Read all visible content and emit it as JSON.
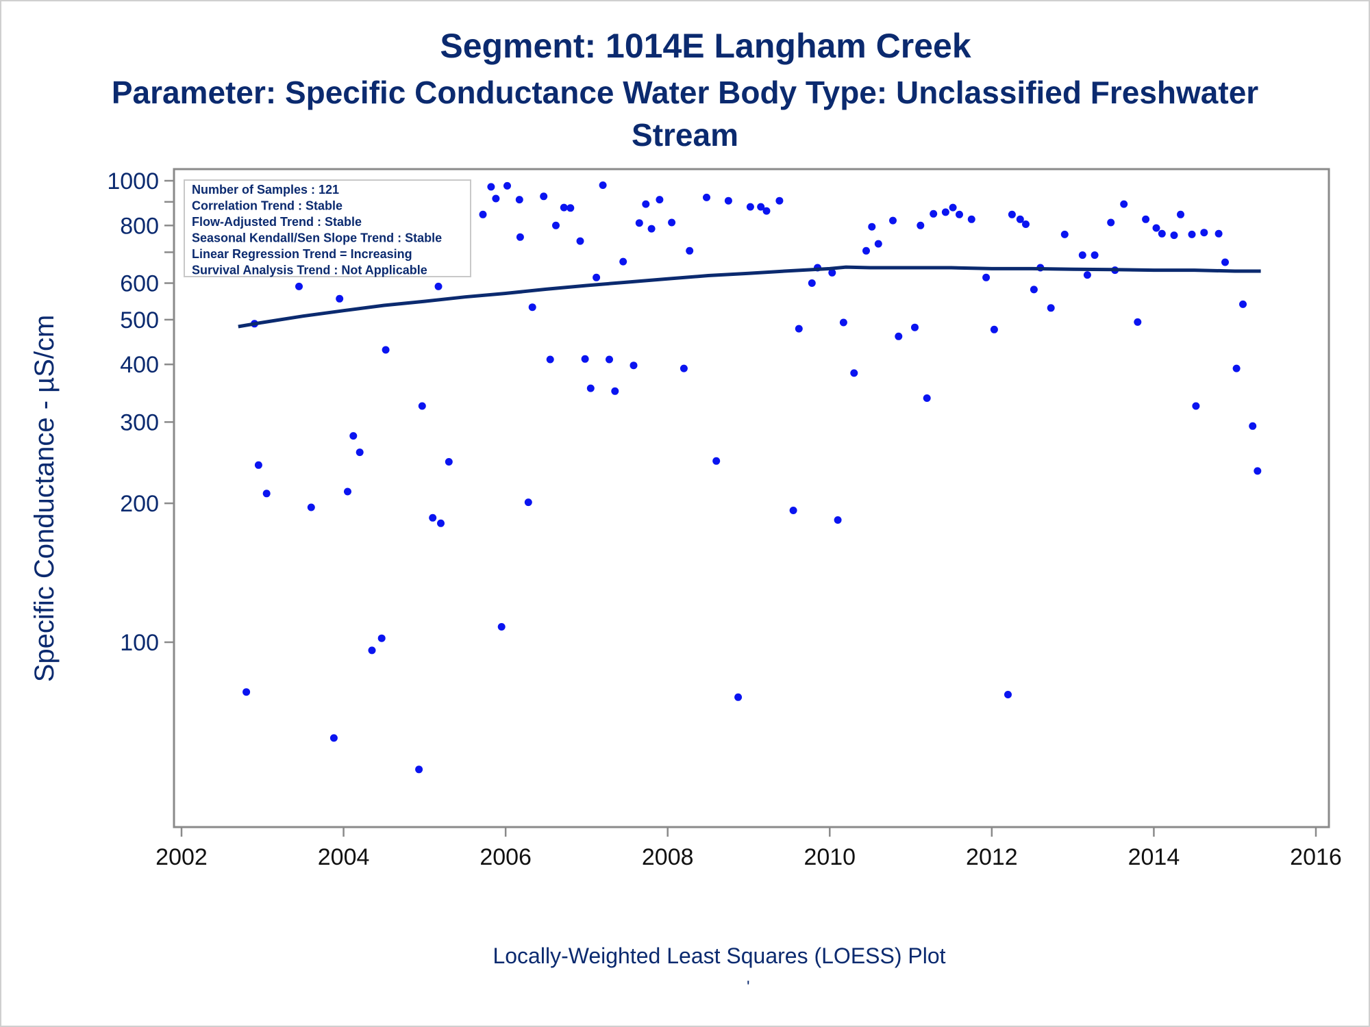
{
  "title": "Segment: 1014E  Langham Creek",
  "subtitle": "Parameter: Specific Conductance   Water Body Type: Unclassified Freshwater Stream",
  "footnote": "Locally-Weighted Least Squares (LOESS) Plot",
  "footnote2": "'",
  "colors": {
    "text": "#0b2a6f",
    "points": "#0a14f0",
    "loess": "#0b2a6f",
    "axis": "#8a8a8a"
  },
  "stats_box": {
    "lines": [
      "Number of Samples : 121",
      "Correlation Trend : Stable",
      "Flow-Adjusted Trend : Stable",
      "Seasonal Kendall/Sen Slope Trend : Stable",
      "Linear Regression Trend = Increasing",
      "Survival Analysis Trend : Not Applicable"
    ]
  },
  "chart_data": {
    "type": "scatter",
    "xlabel": "",
    "ylabel": "Specific Conductance -  µS/cm",
    "yscale": "log",
    "xlim": [
      2002,
      2016
    ],
    "ylim": [
      53,
      1000
    ],
    "x_ticks": [
      2002,
      2004,
      2006,
      2008,
      2010,
      2012,
      2014,
      2016
    ],
    "y_ticks": [
      100,
      200,
      300,
      400,
      500,
      600,
      800,
      1000
    ],
    "y_minor_ticks": [
      700,
      900
    ],
    "grid": false,
    "series": [
      {
        "type": "scatter",
        "points": [
          [
            2002.67,
            800
          ],
          [
            2002.8,
            78
          ],
          [
            2002.9,
            490
          ],
          [
            2002.95,
            242
          ],
          [
            2003.05,
            210
          ],
          [
            2003.12,
            665
          ],
          [
            2003.25,
            920
          ],
          [
            2003.35,
            920
          ],
          [
            2003.45,
            590
          ],
          [
            2003.55,
            880
          ],
          [
            2003.6,
            196
          ],
          [
            2003.7,
            710
          ],
          [
            2003.8,
            650
          ],
          [
            2003.88,
            62
          ],
          [
            2003.95,
            555
          ],
          [
            2004.05,
            212
          ],
          [
            2004.12,
            280
          ],
          [
            2004.2,
            258
          ],
          [
            2004.3,
            795
          ],
          [
            2004.35,
            96
          ],
          [
            2004.47,
            102
          ],
          [
            2004.52,
            430
          ],
          [
            2004.6,
            885
          ],
          [
            2004.73,
            885
          ],
          [
            2004.78,
            875
          ],
          [
            2004.93,
            53
          ],
          [
            2004.97,
            325
          ],
          [
            2005.1,
            186
          ],
          [
            2005.17,
            590
          ],
          [
            2005.2,
            181
          ],
          [
            2005.3,
            246
          ],
          [
            2005.72,
            845
          ],
          [
            2005.82,
            970
          ],
          [
            2005.88,
            915
          ],
          [
            2005.95,
            108
          ],
          [
            2006.02,
            975
          ],
          [
            2006.17,
            910
          ],
          [
            2006.18,
            755
          ],
          [
            2006.28,
            201
          ],
          [
            2006.33,
            532
          ],
          [
            2006.47,
            925
          ],
          [
            2006.55,
            410
          ],
          [
            2006.62,
            800
          ],
          [
            2006.72,
            875
          ],
          [
            2006.8,
            873
          ],
          [
            2006.92,
            740
          ],
          [
            2006.98,
            411
          ],
          [
            2007.05,
            355
          ],
          [
            2007.12,
            617
          ],
          [
            2007.2,
            978
          ],
          [
            2007.28,
            410
          ],
          [
            2007.35,
            350
          ],
          [
            2007.45,
            668
          ],
          [
            2007.58,
            398
          ],
          [
            2007.65,
            810
          ],
          [
            2007.73,
            890
          ],
          [
            2007.8,
            787
          ],
          [
            2007.9,
            910
          ],
          [
            2008.05,
            812
          ],
          [
            2008.2,
            392
          ],
          [
            2008.27,
            705
          ],
          [
            2008.48,
            920
          ],
          [
            2008.6,
            247
          ],
          [
            2008.75,
            905
          ],
          [
            2008.87,
            76
          ],
          [
            2009.02,
            878
          ],
          [
            2009.15,
            878
          ],
          [
            2009.22,
            860
          ],
          [
            2009.38,
            905
          ],
          [
            2009.55,
            193
          ],
          [
            2009.62,
            478
          ],
          [
            2009.78,
            600
          ],
          [
            2009.85,
            648
          ],
          [
            2010.03,
            632
          ],
          [
            2010.1,
            184
          ],
          [
            2010.17,
            493
          ],
          [
            2010.3,
            383
          ],
          [
            2010.45,
            705
          ],
          [
            2010.52,
            795
          ],
          [
            2010.6,
            730
          ],
          [
            2010.78,
            820
          ],
          [
            2010.85,
            460
          ],
          [
            2011.05,
            481
          ],
          [
            2011.12,
            800
          ],
          [
            2011.2,
            338
          ],
          [
            2011.28,
            848
          ],
          [
            2011.43,
            855
          ],
          [
            2011.52,
            875
          ],
          [
            2011.6,
            845
          ],
          [
            2011.75,
            825
          ],
          [
            2011.93,
            617
          ],
          [
            2012.03,
            476
          ],
          [
            2012.2,
            77
          ],
          [
            2012.25,
            845
          ],
          [
            2012.35,
            825
          ],
          [
            2012.42,
            805
          ],
          [
            2012.52,
            581
          ],
          [
            2012.6,
            648
          ],
          [
            2012.73,
            530
          ],
          [
            2012.9,
            765
          ],
          [
            2013.12,
            690
          ],
          [
            2013.18,
            625
          ],
          [
            2013.27,
            690
          ],
          [
            2013.47,
            812
          ],
          [
            2013.52,
            640
          ],
          [
            2013.63,
            890
          ],
          [
            2013.8,
            494
          ],
          [
            2013.9,
            825
          ],
          [
            2014.03,
            790
          ],
          [
            2014.1,
            768
          ],
          [
            2014.25,
            762
          ],
          [
            2014.33,
            845
          ],
          [
            2014.47,
            765
          ],
          [
            2014.52,
            325
          ],
          [
            2014.62,
            772
          ],
          [
            2014.8,
            768
          ],
          [
            2014.88,
            666
          ],
          [
            2015.02,
            392
          ],
          [
            2015.1,
            540
          ],
          [
            2015.22,
            294
          ],
          [
            2015.28,
            235
          ]
        ]
      },
      {
        "type": "line",
        "name": "",
        "points": [
          [
            2002.7,
            483
          ],
          [
            2003.0,
            493
          ],
          [
            2003.5,
            509
          ],
          [
            2004.0,
            523
          ],
          [
            2004.5,
            537
          ],
          [
            2005.0,
            548
          ],
          [
            2005.5,
            560
          ],
          [
            2006.0,
            570
          ],
          [
            2006.5,
            582
          ],
          [
            2007.0,
            593
          ],
          [
            2007.5,
            603
          ],
          [
            2008.0,
            613
          ],
          [
            2008.5,
            623
          ],
          [
            2009.0,
            630
          ],
          [
            2009.5,
            638
          ],
          [
            2010.0,
            645
          ],
          [
            2010.2,
            650
          ],
          [
            2010.5,
            648
          ],
          [
            2011.0,
            648
          ],
          [
            2011.5,
            648
          ],
          [
            2012.0,
            645
          ],
          [
            2012.5,
            645
          ],
          [
            2013.0,
            643
          ],
          [
            2013.5,
            642
          ],
          [
            2014.0,
            640
          ],
          [
            2014.5,
            640
          ],
          [
            2015.0,
            637
          ],
          [
            2015.32,
            637
          ]
        ]
      }
    ]
  }
}
